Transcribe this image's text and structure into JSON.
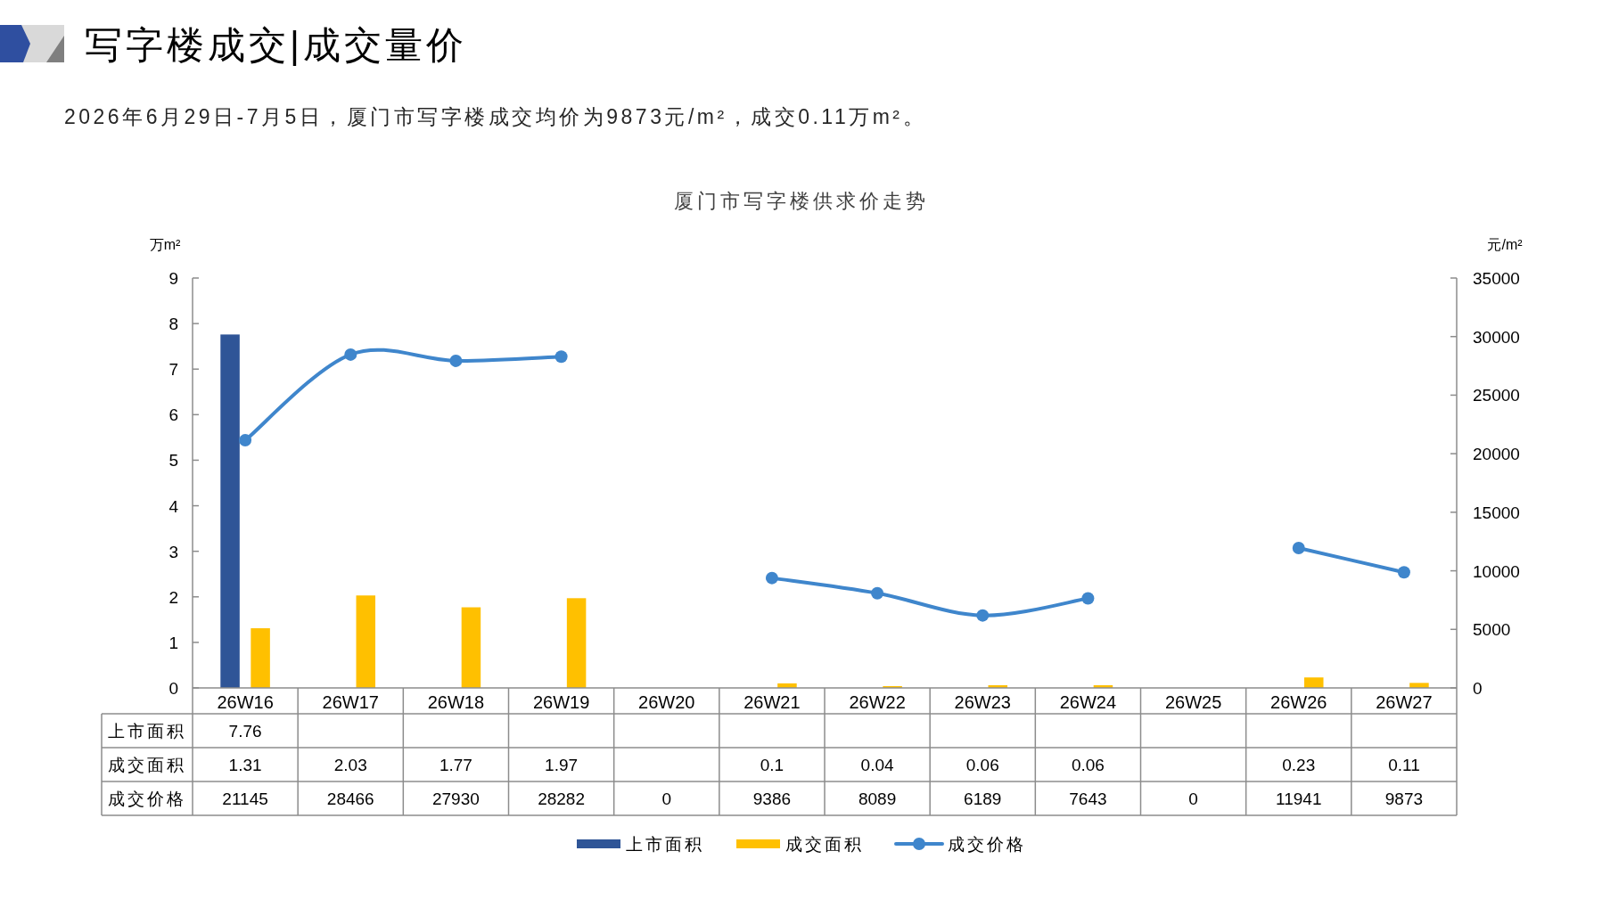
{
  "chart_data": {
    "type": "bar",
    "title": "写字楼成交|成交量价",
    "subtitle": "2026年6月29日-7月5日，厦门市写字楼成交均价为9873元/m²，成交0.11万m²。",
    "annotations": [
      "厦门市写字楼供求价走势"
    ],
    "ylabel": "万m²",
    "y2label": "元/m²",
    "categories": [
      "26W16",
      "26W17",
      "26W18",
      "26W19",
      "26W20",
      "26W21",
      "26W22",
      "26W23",
      "26W24",
      "26W25",
      "26W26",
      "26W27"
    ],
    "series": [
      {
        "name": "上市面积",
        "color": "#2f5597",
        "values": [
          7.76,
          null,
          null,
          null,
          null,
          null,
          null,
          null,
          null,
          null,
          null,
          null
        ],
        "value_labels": [
          "7.76",
          null,
          null,
          null,
          null,
          null,
          null,
          null,
          null,
          null,
          null,
          null
        ]
      },
      {
        "name": "成交面积",
        "color": "#ffc000",
        "values": [
          1.31,
          2.03,
          1.77,
          1.97,
          null,
          0.1,
          0.04,
          0.06,
          0.06,
          null,
          0.23,
          0.11
        ],
        "value_labels": [
          "1.31",
          "2.03",
          "1.77",
          "1.97",
          null,
          "0.1",
          "0.04",
          "0.06",
          "0.06",
          null,
          "0.23",
          "0.11"
        ]
      },
      {
        "name": "成交价格",
        "type": "line",
        "axis": "y2",
        "color": "#3f86cc",
        "values": [
          21145,
          28466,
          27930,
          28282,
          null,
          9386,
          8089,
          6189,
          7643,
          null,
          11941,
          9873
        ],
        "value_labels": [
          "21145",
          "28466",
          "27930",
          "28282",
          "0",
          "9386",
          "8089",
          "6189",
          "7643",
          "0",
          "11941",
          "9873"
        ]
      }
    ],
    "ylim": [
      0,
      9
    ],
    "yticks": [
      0,
      1,
      2,
      3,
      4,
      5,
      6,
      7,
      8,
      9
    ],
    "y2lim": [
      0,
      35000
    ],
    "y2ticks": [
      0,
      5000,
      10000,
      15000,
      20000,
      25000,
      30000,
      35000
    ],
    "marker": "circle",
    "legend": "bottom"
  }
}
